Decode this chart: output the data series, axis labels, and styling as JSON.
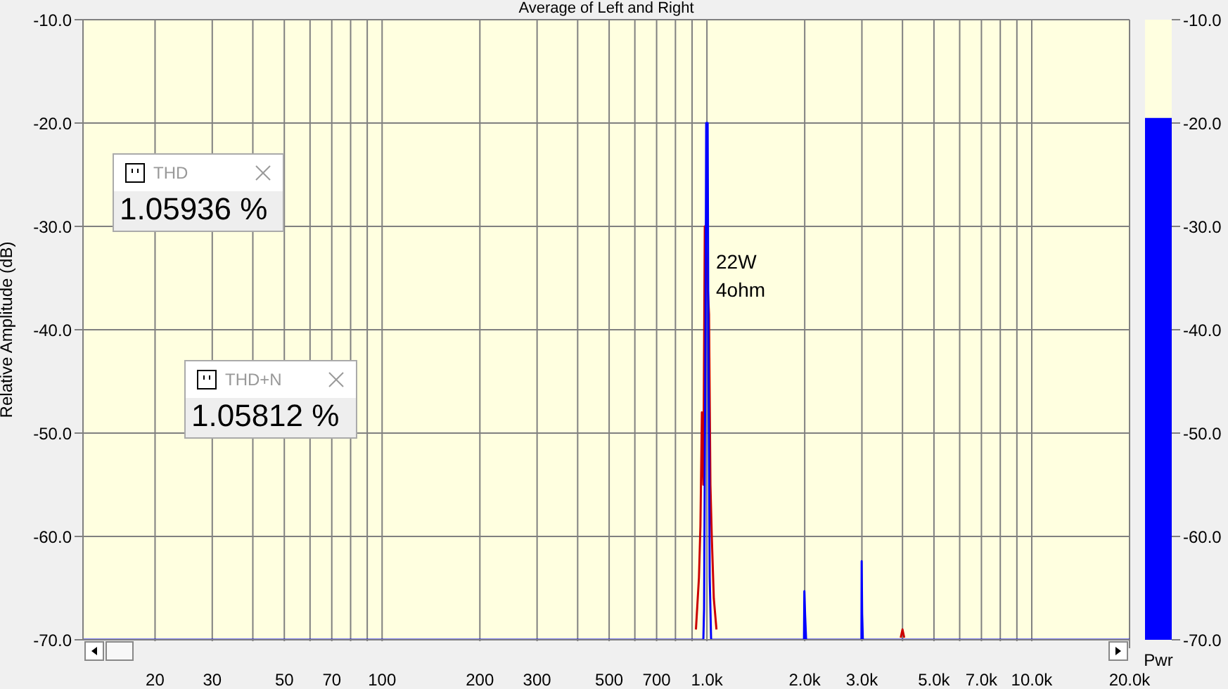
{
  "chart_data": [
    {
      "type": "line",
      "title": "Average of Left and Right",
      "ylabel": "Relative Amplitude (dB)",
      "log": "x",
      "grid": true,
      "marker": "none",
      "line_style": "solid",
      "xlim": [
        12,
        20000
      ],
      "xticks": [
        {
          "value": 20,
          "label": "20"
        },
        {
          "value": 30,
          "label": "30"
        },
        {
          "value": 40,
          "label": null
        },
        {
          "value": 50,
          "label": "50"
        },
        {
          "value": 60,
          "label": null
        },
        {
          "value": 70,
          "label": "70"
        },
        {
          "value": 80,
          "label": null
        },
        {
          "value": 90,
          "label": null
        },
        {
          "value": 100,
          "label": "100"
        },
        {
          "value": 200,
          "label": "200"
        },
        {
          "value": 300,
          "label": "300"
        },
        {
          "value": 400,
          "label": null
        },
        {
          "value": 500,
          "label": "500"
        },
        {
          "value": 600,
          "label": null
        },
        {
          "value": 700,
          "label": "700"
        },
        {
          "value": 800,
          "label": null
        },
        {
          "value": 900,
          "label": null
        },
        {
          "value": 1000,
          "label": "1.0k"
        },
        {
          "value": 2000,
          "label": "2.0k"
        },
        {
          "value": 3000,
          "label": "3.0k"
        },
        {
          "value": 4000,
          "label": null
        },
        {
          "value": 5000,
          "label": "5.0k"
        },
        {
          "value": 6000,
          "label": null
        },
        {
          "value": 7000,
          "label": "7.0k"
        },
        {
          "value": 8000,
          "label": null
        },
        {
          "value": 9000,
          "label": null
        },
        {
          "value": 10000,
          "label": "10.0k"
        },
        {
          "value": 20000,
          "label": "20.0k"
        }
      ],
      "ylim": [
        -70,
        -10
      ],
      "yticks": [
        {
          "value": -70,
          "label": "-70.0"
        },
        {
          "value": -60,
          "label": "-60.0"
        },
        {
          "value": -50,
          "label": "-50.0"
        },
        {
          "value": -40,
          "label": "-40.0"
        },
        {
          "value": -30,
          "label": "-30.0"
        },
        {
          "value": -20,
          "label": "-20.0"
        },
        {
          "value": -10,
          "label": "-10.0"
        }
      ],
      "annotations": [
        "THD",
        "1.05936 %",
        "THD+N",
        "1.05812 %",
        "22W",
        "4ohm"
      ],
      "series": [
        {
          "color": "#cc0000",
          "x": [
            925,
            945,
            955,
            965,
            975,
            985,
            1015,
            1025,
            1035,
            1050,
            1070,
            null,
            3950,
            4000,
            4050
          ],
          "values": [
            -69,
            -64,
            -59,
            -48,
            -55,
            -30,
            -38.5,
            -55,
            -60,
            -66,
            -69,
            null,
            -69.8,
            -69,
            -69.8
          ]
        },
        {
          "color": "#0000ff",
          "x": [
            12,
            975,
            980,
            990,
            995,
            1005,
            1010,
            1020,
            1030,
            1990,
            1995,
            2005,
            2020,
            2990,
            2995,
            3005,
            3020,
            20000
          ],
          "values": [
            -70,
            -70,
            -67,
            -40,
            -20,
            -20,
            -40,
            -64,
            -70,
            -70,
            -65.3,
            -67.5,
            -70,
            -70,
            -62.4,
            -67.5,
            -70,
            -70
          ]
        }
      ]
    },
    {
      "type": "bar",
      "xlabel": "Pwr",
      "categories": [
        null
      ],
      "base": [
        -70
      ],
      "values": [
        50.5
      ],
      "color": "#0000ff",
      "ylim": [
        -70,
        -10
      ],
      "yticks": [
        {
          "value": -70,
          "label": "-70.0"
        },
        {
          "value": -60,
          "label": "-60.0"
        },
        {
          "value": -50,
          "label": "-50.0"
        },
        {
          "value": -40,
          "label": "-40.0"
        },
        {
          "value": -30,
          "label": "-30.0"
        },
        {
          "value": -20,
          "label": "-20.0"
        },
        {
          "value": -10,
          "label": "-10.0"
        }
      ]
    }
  ]
}
